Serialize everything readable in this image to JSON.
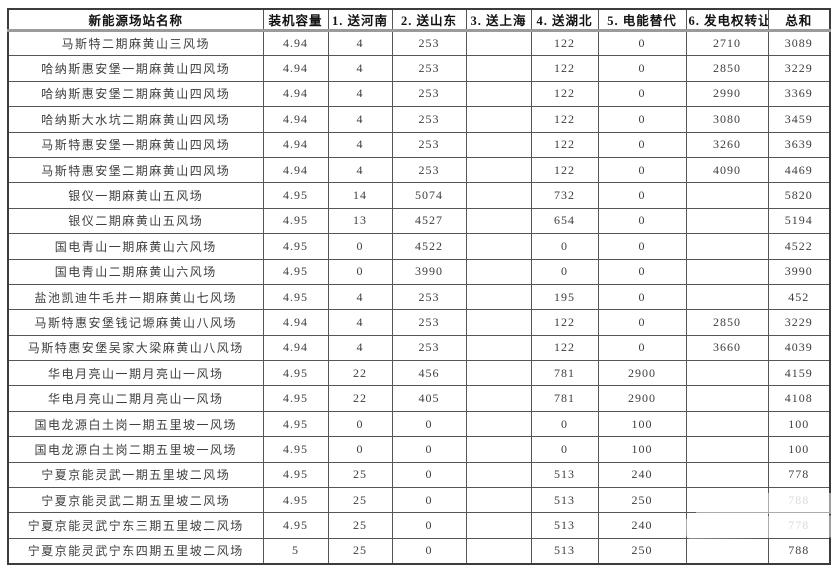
{
  "table": {
    "columns": [
      "新能源场站名称",
      "装机容量",
      "1. 送河南",
      "2. 送山东",
      "3. 送上海",
      "4. 送湖北",
      "5. 电能替代",
      "6. 发电权转让",
      "总和"
    ],
    "rows": [
      [
        "马斯特二期麻黄山三风场",
        "4.94",
        "4",
        "253",
        "",
        "122",
        "0",
        "2710",
        "3089"
      ],
      [
        "哈纳斯惠安堡一期麻黄山四风场",
        "4.94",
        "4",
        "253",
        "",
        "122",
        "0",
        "2850",
        "3229"
      ],
      [
        "哈纳斯惠安堡二期麻黄山四风场",
        "4.94",
        "4",
        "253",
        "",
        "122",
        "0",
        "2990",
        "3369"
      ],
      [
        "哈纳斯大水坑二期麻黄山四风场",
        "4.94",
        "4",
        "253",
        "",
        "122",
        "0",
        "3080",
        "3459"
      ],
      [
        "马斯特惠安堡一期麻黄山四风场",
        "4.94",
        "4",
        "253",
        "",
        "122",
        "0",
        "3260",
        "3639"
      ],
      [
        "马斯特惠安堡二期麻黄山四风场",
        "4.94",
        "4",
        "253",
        "",
        "122",
        "0",
        "4090",
        "4469"
      ],
      [
        "银仪一期麻黄山五风场",
        "4.95",
        "14",
        "5074",
        "",
        "732",
        "0",
        "",
        "5820"
      ],
      [
        "银仪二期麻黄山五风场",
        "4.95",
        "13",
        "4527",
        "",
        "654",
        "0",
        "",
        "5194"
      ],
      [
        "国电青山一期麻黄山六风场",
        "4.95",
        "0",
        "4522",
        "",
        "0",
        "0",
        "",
        "4522"
      ],
      [
        "国电青山二期麻黄山六风场",
        "4.95",
        "0",
        "3990",
        "",
        "0",
        "0",
        "",
        "3990"
      ],
      [
        "盐池凯迪牛毛井一期麻黄山七风场",
        "4.95",
        "4",
        "253",
        "",
        "195",
        "0",
        "",
        "452"
      ],
      [
        "马斯特惠安堡钱记塬麻黄山八风场",
        "4.94",
        "4",
        "253",
        "",
        "122",
        "0",
        "2850",
        "3229"
      ],
      [
        "马斯特惠安堡吴家大梁麻黄山八风场",
        "4.94",
        "4",
        "253",
        "",
        "122",
        "0",
        "3660",
        "4039"
      ],
      [
        "华电月亮山一期月亮山一风场",
        "4.95",
        "22",
        "456",
        "",
        "781",
        "2900",
        "",
        "4159"
      ],
      [
        "华电月亮山二期月亮山一风场",
        "4.95",
        "22",
        "405",
        "",
        "781",
        "2900",
        "",
        "4108"
      ],
      [
        "国电龙源白土岗一期五里坡一风场",
        "4.95",
        "0",
        "0",
        "",
        "0",
        "100",
        "",
        "100"
      ],
      [
        "国电龙源白土岗二期五里坡一风场",
        "4.95",
        "0",
        "0",
        "",
        "0",
        "100",
        "",
        "100"
      ],
      [
        "宁夏京能灵武一期五里坡二风场",
        "4.95",
        "25",
        "0",
        "",
        "513",
        "240",
        "",
        "778"
      ],
      [
        "宁夏京能灵武二期五里坡二风场",
        "4.95",
        "25",
        "0",
        "",
        "513",
        "250",
        "",
        "788"
      ],
      [
        "宁夏京能灵武宁东三期五里坡二风场",
        "4.95",
        "25",
        "0",
        "",
        "513",
        "240",
        "",
        "778"
      ],
      [
        "宁夏京能灵武宁东四期五里坡二风场",
        "5",
        "25",
        "0",
        "",
        "513",
        "250",
        "",
        "788"
      ]
    ],
    "faded_cells": [
      [
        18,
        8
      ],
      [
        19,
        8
      ]
    ]
  },
  "colors": {
    "border": "#565656",
    "outer_border": "#3c3c3c",
    "header_separator": "#9b9b9b",
    "text": "#3d3d3d",
    "header_text": "#111111",
    "faded_text": "#b5b5b5"
  }
}
